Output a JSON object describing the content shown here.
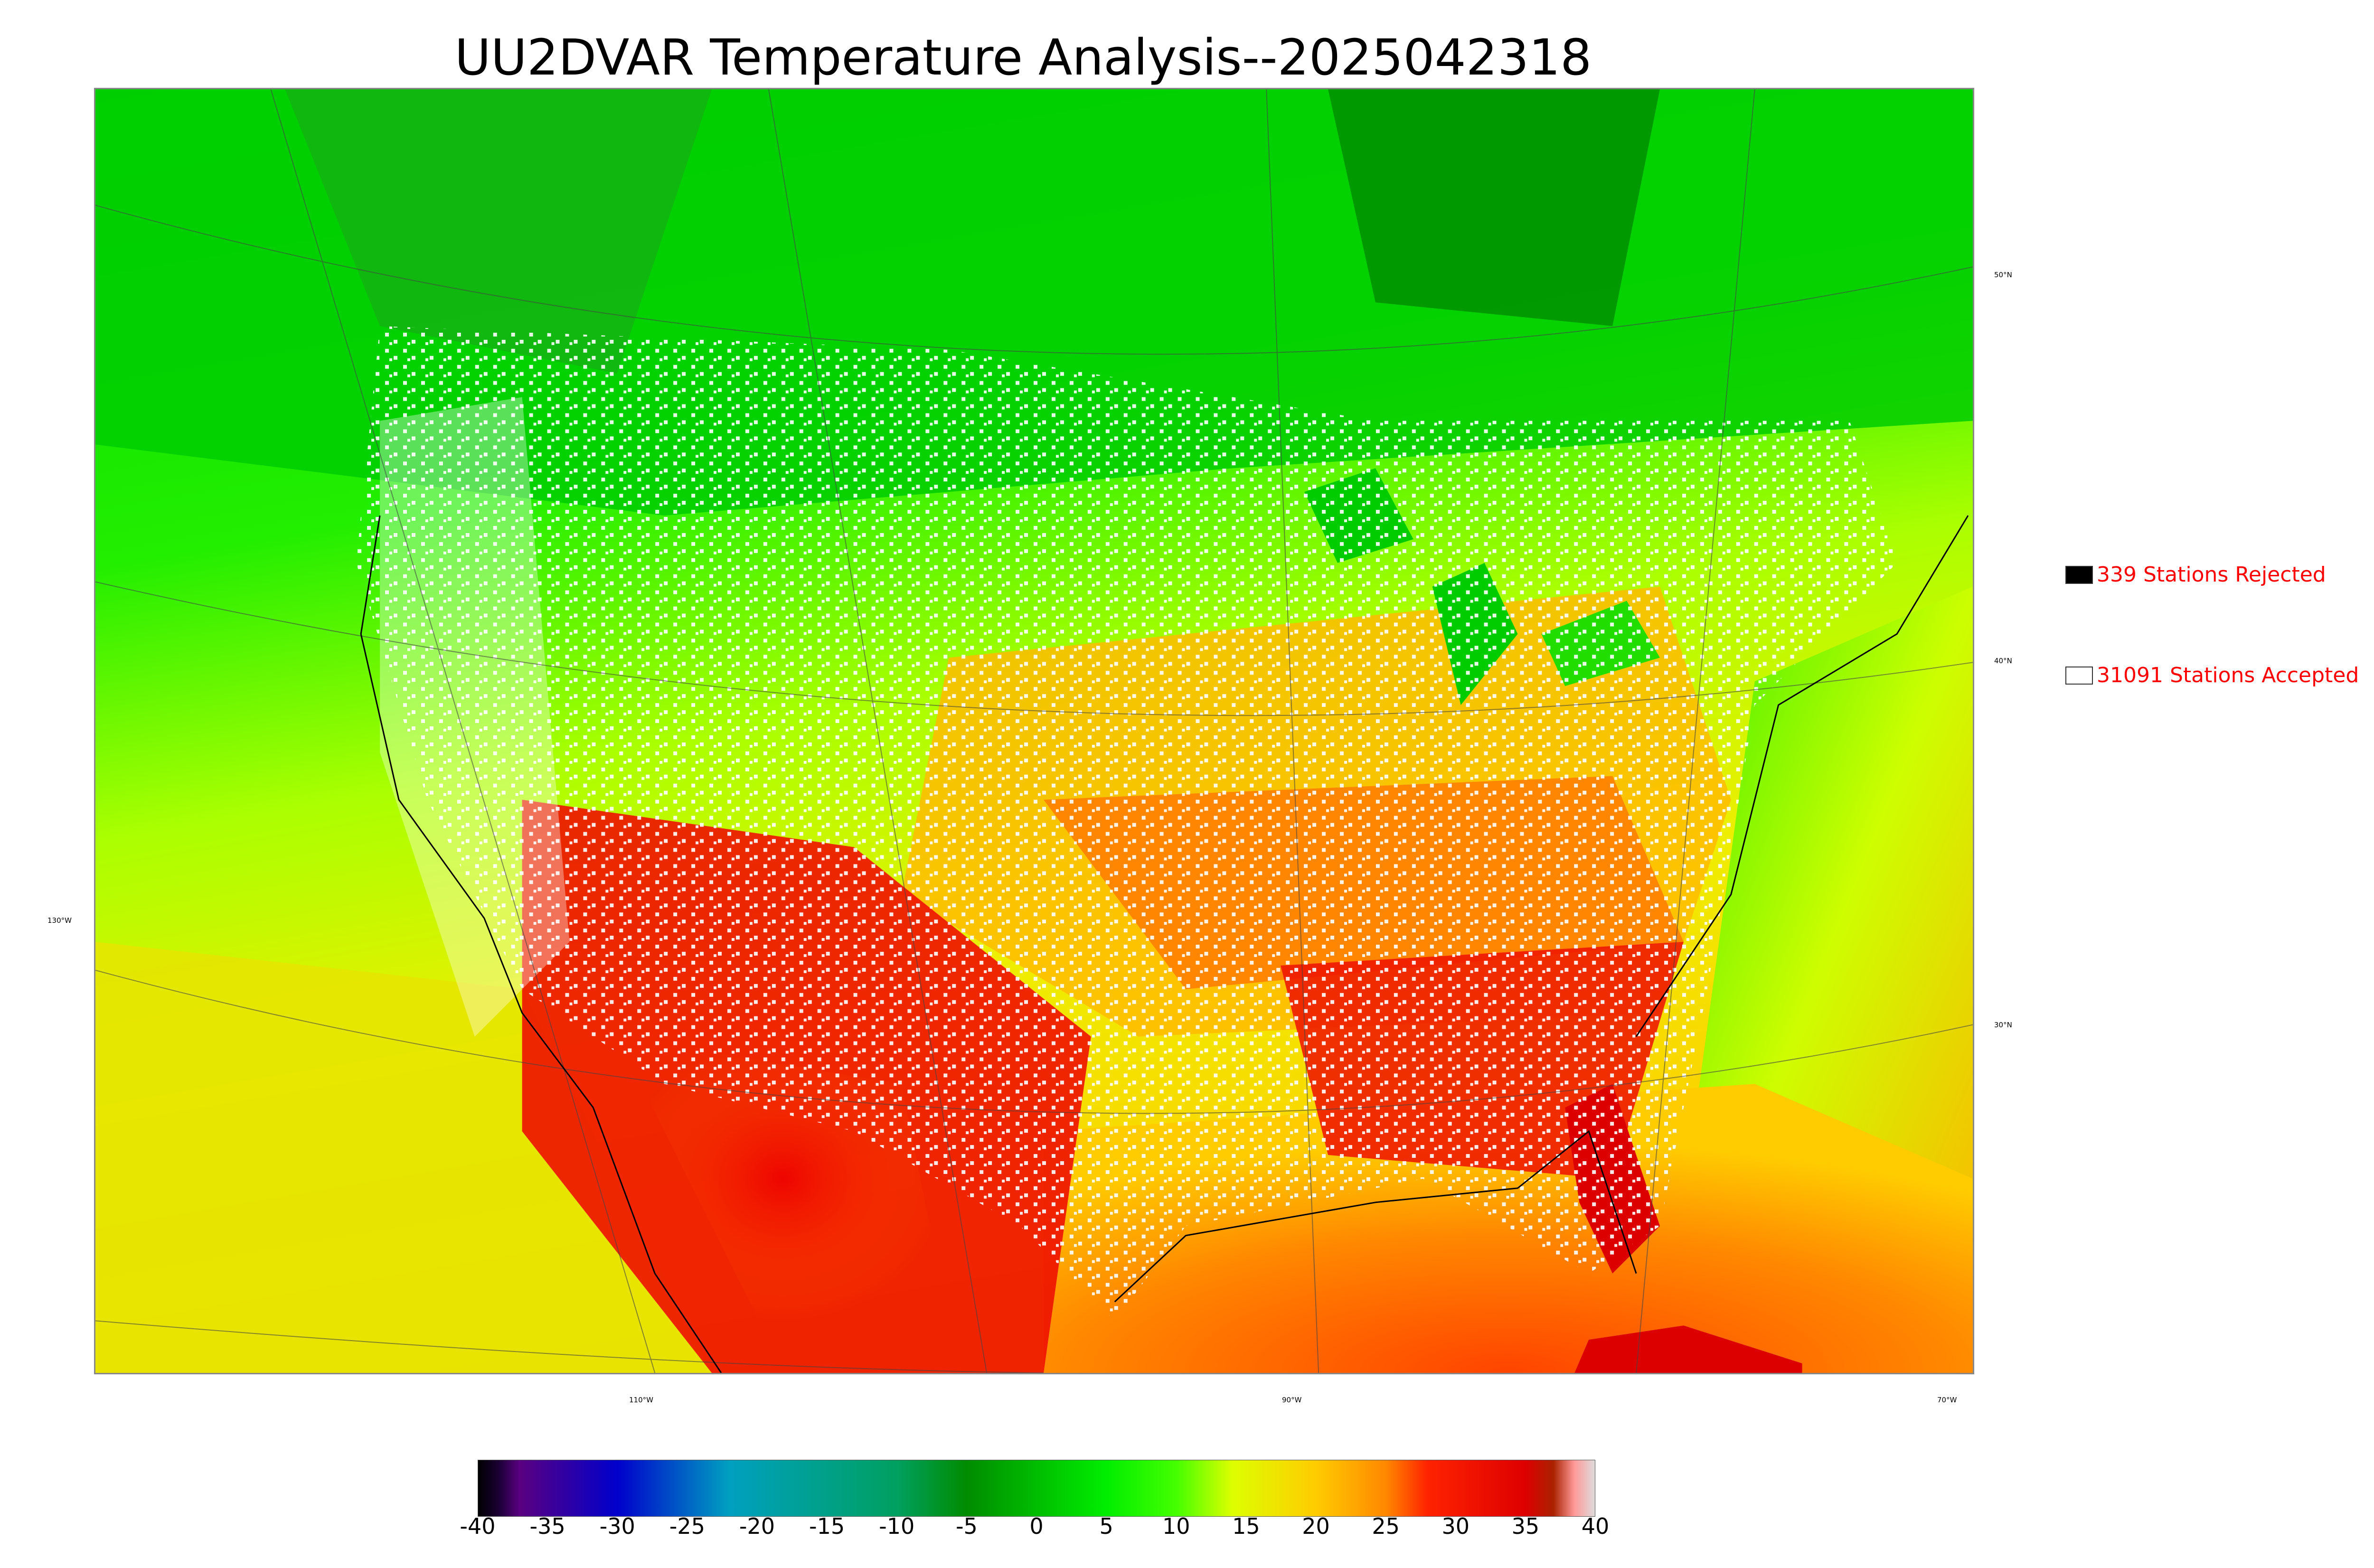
{
  "title": "UU2DVAR Temperature Analysis--2025042318",
  "legend": {
    "rejected": {
      "label": "339 Stations Rejected",
      "swatch": "#000000"
    },
    "accepted": {
      "label": "31091 Stations Accepted",
      "swatch": "#ffffff"
    }
  },
  "latitude_labels": [
    "50°N",
    "40°N",
    "30°N"
  ],
  "longitude_labels": [
    "130°W",
    "110°W",
    "90°W",
    "70°W"
  ],
  "colorbar": {
    "ticks": [
      "-40",
      "-35",
      "-30",
      "-25",
      "-20",
      "-15",
      "-10",
      "-5",
      "0",
      "5",
      "10",
      "15",
      "20",
      "25",
      "30",
      "35",
      "40"
    ],
    "min": -40,
    "max": 40,
    "stops": [
      {
        "v": -40,
        "c": "#000000"
      },
      {
        "v": -38.5,
        "c": "#1a0033"
      },
      {
        "v": -37,
        "c": "#5a0080"
      },
      {
        "v": -30,
        "c": "#0000cc"
      },
      {
        "v": -22,
        "c": "#00a0c0"
      },
      {
        "v": -10,
        "c": "#00a060"
      },
      {
        "v": -5,
        "c": "#008c00"
      },
      {
        "v": 5,
        "c": "#00ee00"
      },
      {
        "v": 10,
        "c": "#44ff00"
      },
      {
        "v": 14,
        "c": "#ddff00"
      },
      {
        "v": 20,
        "c": "#ffcc00"
      },
      {
        "v": 25,
        "c": "#ff8800"
      },
      {
        "v": 28,
        "c": "#ff2200"
      },
      {
        "v": 35,
        "c": "#dd0000"
      },
      {
        "v": 37,
        "c": "#aa2200"
      },
      {
        "v": 38.5,
        "c": "#ff9999"
      },
      {
        "v": 40,
        "c": "#dddddd"
      }
    ]
  },
  "colors": {
    "cold": "#00e000",
    "cool": "#66ff00",
    "mild": "#ddff00",
    "warm": "#ffbb00",
    "hot": "#ff3300",
    "very_hot": "#dd0000",
    "dark_green": "#009900"
  }
}
